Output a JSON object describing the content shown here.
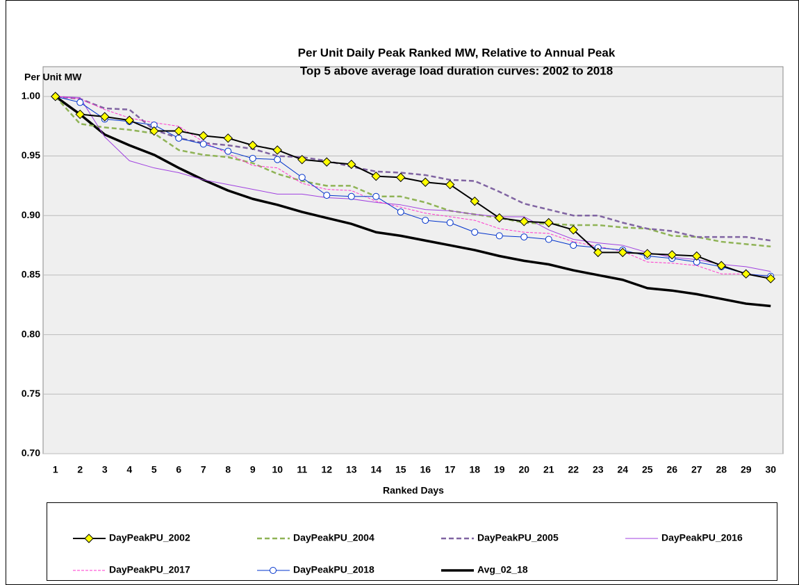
{
  "chart_data": {
    "type": "line",
    "title": "Per Unit Daily Peak Ranked MW, Relative to Annual Peak",
    "subtitle": "Top 5 above average load duration curves: 2002 to 2018",
    "y_label": "Per Unit MW",
    "x_label": "Ranked Days",
    "categories": [
      "1",
      "2",
      "3",
      "4",
      "5",
      "6",
      "7",
      "8",
      "9",
      "10",
      "11",
      "12",
      "13",
      "14",
      "15",
      "16",
      "17",
      "18",
      "19",
      "20",
      "21",
      "22",
      "23",
      "24",
      "25",
      "26",
      "27",
      "28",
      "29",
      "30"
    ],
    "ylim": [
      0.7,
      1.025
    ],
    "yticks": [
      {
        "value": 0.7,
        "label": "0.70"
      },
      {
        "value": 0.75,
        "label": "0.75"
      },
      {
        "value": 0.8,
        "label": "0.80"
      },
      {
        "value": 0.85,
        "label": "0.85"
      },
      {
        "value": 0.9,
        "label": "0.90"
      },
      {
        "value": 0.95,
        "label": "0.95"
      },
      {
        "value": 1.0,
        "label": "1.00"
      }
    ],
    "grid": true,
    "legend": "bottom",
    "series": [
      {
        "name": "DayPeakPU_2002",
        "color": "#000000",
        "marker": "diamond",
        "marker_color": "#ffff00",
        "dash": false,
        "line_width": 2,
        "values": [
          1.0,
          0.985,
          0.983,
          0.98,
          0.971,
          0.971,
          0.967,
          0.965,
          0.959,
          0.955,
          0.947,
          0.945,
          0.943,
          0.933,
          0.932,
          0.928,
          0.926,
          0.912,
          0.898,
          0.895,
          0.894,
          0.888,
          0.869,
          0.869,
          0.868,
          0.867,
          0.866,
          0.858,
          0.851,
          0.847
        ]
      },
      {
        "name": "DayPeakPU_2004",
        "color": "#8fb356",
        "dash": true,
        "line_width": 2.5,
        "values": [
          1.0,
          0.977,
          0.974,
          0.972,
          0.969,
          0.955,
          0.951,
          0.949,
          0.944,
          0.935,
          0.929,
          0.925,
          0.925,
          0.916,
          0.916,
          0.911,
          0.904,
          0.901,
          0.898,
          0.894,
          0.893,
          0.892,
          0.892,
          0.89,
          0.889,
          0.883,
          0.882,
          0.878,
          0.876,
          0.874
        ]
      },
      {
        "name": "DayPeakPU_2005",
        "color": "#8064a2",
        "dash": true,
        "line_width": 2.5,
        "values": [
          1.0,
          0.998,
          0.99,
          0.989,
          0.972,
          0.965,
          0.961,
          0.959,
          0.956,
          0.95,
          0.949,
          0.946,
          0.941,
          0.937,
          0.936,
          0.934,
          0.93,
          0.929,
          0.92,
          0.91,
          0.905,
          0.9,
          0.9,
          0.894,
          0.889,
          0.887,
          0.882,
          0.882,
          0.882,
          0.879
        ]
      },
      {
        "name": "DayPeakPU_2016",
        "color": "#a040e0",
        "dash": false,
        "line_width": 1,
        "values": [
          1.0,
          0.999,
          0.966,
          0.946,
          0.94,
          0.936,
          0.93,
          0.926,
          0.922,
          0.918,
          0.918,
          0.915,
          0.914,
          0.911,
          0.909,
          0.905,
          0.904,
          0.901,
          0.899,
          0.899,
          0.888,
          0.88,
          0.877,
          0.875,
          0.869,
          0.865,
          0.863,
          0.859,
          0.857,
          0.853
        ]
      },
      {
        "name": "DayPeakPU_2017",
        "color": "#ff33cc",
        "dash": true,
        "line_width": 1,
        "values": [
          1.0,
          0.998,
          0.989,
          0.982,
          0.978,
          0.975,
          0.962,
          0.952,
          0.942,
          0.94,
          0.927,
          0.922,
          0.921,
          0.912,
          0.907,
          0.902,
          0.899,
          0.896,
          0.889,
          0.886,
          0.885,
          0.878,
          0.874,
          0.87,
          0.861,
          0.86,
          0.858,
          0.851,
          0.851,
          0.849
        ]
      },
      {
        "name": "DayPeakPU_2018",
        "color": "#0033cc",
        "marker": "circle",
        "marker_color": "#ffffff",
        "dash": false,
        "line_width": 1,
        "values": [
          1.0,
          0.995,
          0.981,
          0.979,
          0.976,
          0.965,
          0.96,
          0.954,
          0.948,
          0.947,
          0.932,
          0.917,
          0.916,
          0.916,
          0.903,
          0.896,
          0.894,
          0.886,
          0.883,
          0.882,
          0.88,
          0.875,
          0.873,
          0.871,
          0.866,
          0.864,
          0.861,
          0.857,
          0.851,
          0.849
        ]
      },
      {
        "name": "Avg_02_18",
        "color": "#000000",
        "dash": false,
        "line_width": 3.5,
        "values": [
          1.0,
          0.985,
          0.968,
          0.959,
          0.951,
          0.94,
          0.93,
          0.921,
          0.914,
          0.909,
          0.903,
          0.898,
          0.893,
          0.886,
          0.883,
          0.879,
          0.875,
          0.871,
          0.866,
          0.862,
          0.859,
          0.854,
          0.85,
          0.846,
          0.839,
          0.837,
          0.834,
          0.83,
          0.826,
          0.824
        ]
      }
    ]
  }
}
